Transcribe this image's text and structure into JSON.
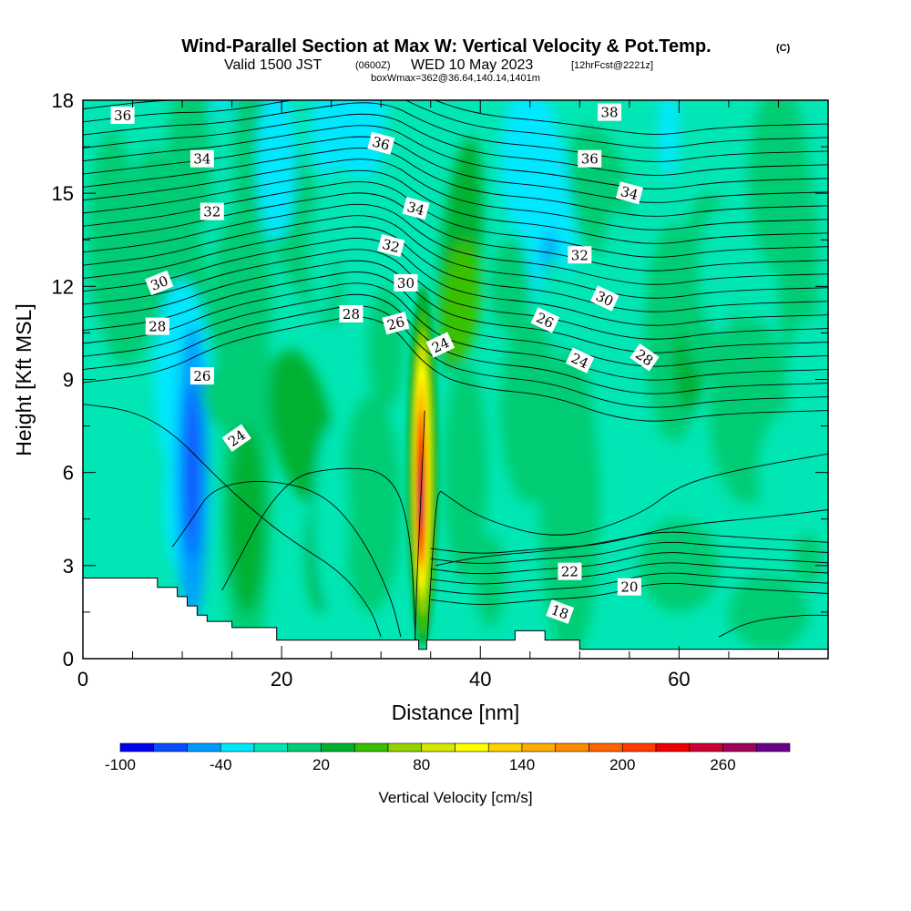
{
  "title": {
    "main": "Wind-Parallel Section at Max W: Vertical Velocity & Pot.Temp.",
    "copyright": "(C)",
    "line2_a": "Valid 1500 JST",
    "line2_b": "(0600Z)",
    "line2_c": "WED 10 May 2023",
    "line2_d": "[12hrFcst@2221z]",
    "line3": "boxWmax=362@36.64,140.14,1401m"
  },
  "chart_data": {
    "type": "heatmap",
    "xlabel": "Distance [nm]",
    "ylabel": "Height [Kft MSL]",
    "xlim": [
      0,
      75
    ],
    "ylim": [
      0,
      18
    ],
    "x_ticks": [
      0,
      20,
      40,
      60
    ],
    "y_ticks": [
      0,
      3,
      6,
      9,
      12,
      15,
      18
    ],
    "colorbar": {
      "label": "Vertical Velocity [cm/s]",
      "levels": [
        -100,
        -80,
        -60,
        -40,
        -20,
        0,
        20,
        40,
        60,
        80,
        100,
        120,
        140,
        160,
        180,
        200,
        220,
        240,
        260,
        280,
        300
      ],
      "tick_labels": [
        "-100",
        "-40",
        "20",
        "80",
        "140",
        "200",
        "260"
      ],
      "tick_values": [
        -100,
        -40,
        20,
        80,
        140,
        200,
        260
      ],
      "colors": [
        "#0000ee",
        "#0a4dff",
        "#009bff",
        "#00e8ff",
        "#00e6b4",
        "#00cd73",
        "#00b132",
        "#37c100",
        "#93d300",
        "#d4e800",
        "#ffff00",
        "#ffd200",
        "#ffad00",
        "#ff8a00",
        "#ff6400",
        "#ff3c00",
        "#ee0000",
        "#cc0033",
        "#a0005a",
        "#6a008a"
      ]
    },
    "max_w": {
      "value": 362,
      "x": 34,
      "y": 5.5
    },
    "theta_contour_labels": [
      {
        "text": "36",
        "x": 4,
        "y": 17.5,
        "rot": 0
      },
      {
        "text": "34",
        "x": 12,
        "y": 16.1,
        "rot": 0
      },
      {
        "text": "32",
        "x": 13,
        "y": 14.4,
        "rot": 0
      },
      {
        "text": "30",
        "x": 7.7,
        "y": 12.1,
        "rot": -22
      },
      {
        "text": "28",
        "x": 7.5,
        "y": 10.7,
        "rot": 0
      },
      {
        "text": "26",
        "x": 12,
        "y": 9.1,
        "rot": 0
      },
      {
        "text": "24",
        "x": 15.5,
        "y": 7.1,
        "rot": -35
      },
      {
        "text": "36",
        "x": 30,
        "y": 16.6,
        "rot": 15
      },
      {
        "text": "34",
        "x": 33.5,
        "y": 14.5,
        "rot": 15
      },
      {
        "text": "32",
        "x": 31,
        "y": 13.3,
        "rot": 15
      },
      {
        "text": "30",
        "x": 32.5,
        "y": 12.1,
        "rot": 0
      },
      {
        "text": "28",
        "x": 27,
        "y": 11.1,
        "rot": 0
      },
      {
        "text": "26",
        "x": 31.5,
        "y": 10.8,
        "rot": -15
      },
      {
        "text": "24",
        "x": 36,
        "y": 10.1,
        "rot": -25
      },
      {
        "text": "38",
        "x": 53,
        "y": 17.6,
        "rot": 0
      },
      {
        "text": "36",
        "x": 51,
        "y": 16.1,
        "rot": 0
      },
      {
        "text": "34",
        "x": 55,
        "y": 15.0,
        "rot": 15
      },
      {
        "text": "32",
        "x": 50,
        "y": 13.0,
        "rot": 0
      },
      {
        "text": "30",
        "x": 52.5,
        "y": 11.6,
        "rot": 25
      },
      {
        "text": "26",
        "x": 46.5,
        "y": 10.9,
        "rot": 25
      },
      {
        "text": "24",
        "x": 50,
        "y": 9.6,
        "rot": 25
      },
      {
        "text": "28",
        "x": 56.5,
        "y": 9.7,
        "rot": 35
      },
      {
        "text": "22",
        "x": 49,
        "y": 2.8,
        "rot": 0
      },
      {
        "text": "20",
        "x": 55,
        "y": 2.3,
        "rot": 0
      },
      {
        "text": "18",
        "x": 48,
        "y": 1.5,
        "rot": 20
      }
    ]
  }
}
